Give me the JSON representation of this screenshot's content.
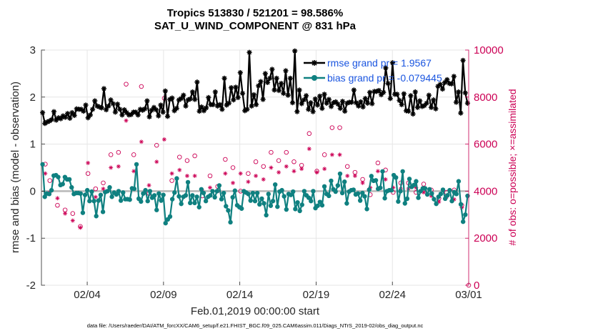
{
  "chart_data": {
    "type": "line",
    "title": "Tropics 513830 / 521201 = 98.586%",
    "subtitle": "SAT_U_WIND_COMPONENT @ 831 hPa",
    "xlabel": "Feb.01,2019 00:00:00 start",
    "ylabel": "rmse and bias (model - observation)",
    "ylabel_right": "# of obs: o=possible; ×=assimilated",
    "footnote": "data file: /Users/raeder/DAI/ATM_forcXX/CAM6_setup/f.e21.FHIST_BGC.f09_025.CAM6assim.011/Diags_NTrS_2019-02/obs_diag_output.nc",
    "xlim": [
      1,
      29
    ],
    "ylim": [
      -2,
      3
    ],
    "ylim_right": [
      0,
      10000
    ],
    "xticks": [
      {
        "value": 4,
        "label": "02/04"
      },
      {
        "value": 9,
        "label": "02/09"
      },
      {
        "value": 14,
        "label": "02/14"
      },
      {
        "value": 19,
        "label": "02/19"
      },
      {
        "value": 24,
        "label": "02/24"
      },
      {
        "value": 29,
        "label": "03/01"
      }
    ],
    "yticks": [
      "-2",
      "-1",
      "0",
      "1",
      "2",
      "3"
    ],
    "yticks_right": [
      "0",
      "2000",
      "4000",
      "6000",
      "8000",
      "10000"
    ],
    "series": [
      {
        "name": "rmse grand pr = 1.9567",
        "color": "#000000",
        "marker": "asterisk",
        "values": [
          1.67,
          1.44,
          1.47,
          1.49,
          1.52,
          1.69,
          1.51,
          1.56,
          1.54,
          1.6,
          1.57,
          1.65,
          1.55,
          1.67,
          1.61,
          1.75,
          1.74,
          1.74,
          1.7,
          1.83,
          1.56,
          1.62,
          1.74,
          1.92,
          1.81,
          1.79,
          1.77,
          2.18,
          1.73,
          1.81,
          1.94,
          1.86,
          1.68,
          1.85,
          1.74,
          1.62,
          1.73,
          1.67,
          1.62,
          1.63,
          1.68,
          1.68,
          1.62,
          1.74,
          1.72,
          1.75,
          1.92,
          1.58,
          1.72,
          1.78,
          1.73,
          1.6,
          1.83,
          1.68,
          2.13,
          1.59,
          1.95,
          1.98,
          1.71,
          1.76,
          1.94,
          1.97,
          2.04,
          1.81,
          1.94,
          1.96,
          2.11,
          1.95,
          2.32,
          1.7,
          1.79,
          1.71,
          1.77,
          1.99,
          1.84,
          1.84,
          2.11,
          1.81,
          1.84,
          1.74,
          2.4,
          1.83,
          1.87,
          2.2,
          1.94,
          2.21,
          1.99,
          2.52,
          2.08,
          1.71,
          1.74,
          2.95,
          1.81,
          2.05,
          1.84,
          2.24,
          2.33,
          1.95,
          2.5,
          2.31,
          2.4,
          2.59,
          2.15,
          2.4,
          2.14,
          2.29,
          2.08,
          2.56,
          2.04,
          2.4,
          1.88,
          2.98,
          1.69,
          2.15,
          1.86,
          1.94,
          2.03,
          1.74,
          1.88,
          1.69,
          1.96,
          1.83,
          2.02,
          1.76,
          2.06,
          1.87,
          1.95,
          1.8,
          1.88,
          1.9,
          1.85,
          1.76,
          1.91,
          1.7,
          1.87,
          1.89,
          1.89,
          2.15,
          1.88,
          1.81,
          1.9,
          1.79,
          1.97,
          1.87,
          2.1,
          1.86,
          2.12,
          2.12,
          2.14,
          2.05,
          2.1,
          2.62,
          2.29,
          1.97,
          2.73,
          2.06,
          2.06,
          1.93,
          1.84,
          2.07,
          1.71,
          1.7,
          2.03,
          1.64,
          2.11,
          1.78,
          1.92,
          1.8,
          1.82,
          1.87,
          2.04,
          1.78,
          1.94,
          1.75,
          2.23,
          2.27,
          2.17,
          2.31,
          2.37,
          2.29,
          2.28,
          2.44,
          1.89,
          2.11,
          1.66,
          2.78,
          2.09,
          1.87
        ]
      },
      {
        "name": "bias grand pr = -0.079445",
        "color": "#0f8080",
        "marker": "circle",
        "values": [
          0.57,
          -0.12,
          -0.05,
          -0.06,
          0.02,
          0.33,
          0.34,
          0.3,
          0.13,
          0.15,
          0.3,
          0.25,
          0.25,
          0.08,
          -0.06,
          -0.04,
          -0.04,
          -0.05,
          -0.46,
          -0.08,
          0.02,
          -0.21,
          -0.01,
          -0.21,
          -0.53,
          -0.2,
          -0.08,
          -0.44,
          -0.02,
          0.0,
          0.08,
          -0.12,
          -0.03,
          -0.07,
          0.0,
          -0.2,
          -0.03,
          -0.17,
          -0.17,
          -0.18,
          0.06,
          0.05,
          0.57,
          -0.16,
          -0.22,
          -0.05,
          0.02,
          -0.21,
          0.0,
          -0.14,
          -0.09,
          -0.4,
          -0.05,
          -0.2,
          -0.08,
          -0.68,
          -0.6,
          -0.54,
          -0.17,
          -0.03,
          0.27,
          -0.11,
          -0.27,
          -0.12,
          -0.09,
          0.19,
          -0.25,
          -0.09,
          -0.25,
          -0.12,
          -0.34,
          0.04,
          -0.04,
          -0.21,
          -0.12,
          -0.09,
          0.0,
          -0.13,
          0.0,
          0.12,
          -0.17,
          -0.04,
          -0.32,
          -0.41,
          -0.66,
          -0.13,
          0.01,
          -0.3,
          -0.34,
          -0.37,
          0.0,
          -0.03,
          -0.06,
          -0.2,
          -0.04,
          -0.21,
          -0.04,
          -0.28,
          -0.16,
          -0.26,
          -0.51,
          -0.06,
          -0.31,
          -0.21,
          0.14,
          -0.33,
          -0.01,
          0.02,
          -0.11,
          -0.39,
          -0.06,
          -0.08,
          -0.01,
          -0.38,
          -0.24,
          -0.42,
          -0.29,
          0.0,
          -0.09,
          -0.14,
          -0.21,
          0.0,
          -0.36,
          -0.31,
          -0.23,
          -0.3,
          0.1,
          -0.06,
          -0.1,
          0.22,
          0.04,
          -0.01,
          0.12,
          0.37,
          -0.04,
          0.2,
          -0.26,
          -0.01,
          0.02,
          0.03,
          -0.07,
          -0.05,
          -0.2,
          -0.04,
          -0.11,
          -0.38,
          0.03,
          0.32,
          0.22,
          0.23,
          0.05,
          0.07,
          0.42,
          -0.15,
          0.0,
          0.02,
          0.02,
          0.34,
          0.29,
          -0.22,
          0.0,
          0.42,
          -0.26,
          -0.16,
          0.26,
          0.09,
          0.13,
          0.21,
          -0.14,
          0.0,
          0.06,
          0.06,
          -0.07,
          0.04,
          -0.05,
          -0.17,
          -0.27,
          -0.12,
          -0.06,
          0.03,
          -0.16,
          -0.09,
          0.02,
          -0.21,
          -0.02,
          -0.06,
          0.21,
          -0.28,
          -0.65,
          -0.5,
          -0.1
        ]
      },
      {
        "name": "obs possible",
        "color": "#cc0055",
        "marker": "o",
        "axis": "right",
        "points": [
          [
            1.25,
            5150
          ],
          [
            1.55,
            4450
          ],
          [
            2.05,
            3400
          ],
          [
            2.55,
            3200
          ],
          [
            3.05,
            3050
          ],
          [
            3.55,
            2500
          ],
          [
            4.05,
            4750
          ],
          [
            4.55,
            4100
          ],
          [
            5.05,
            4350
          ],
          [
            5.55,
            5550
          ],
          [
            6.05,
            5650
          ],
          [
            6.55,
            8550
          ],
          [
            7.05,
            5550
          ],
          [
            7.55,
            8450
          ],
          [
            8.05,
            3900
          ],
          [
            8.55,
            5950
          ],
          [
            9.05,
            7950
          ],
          [
            9.55,
            4450
          ],
          [
            10.05,
            5450
          ],
          [
            10.55,
            5300
          ],
          [
            11.05,
            5500
          ],
          [
            11.55,
            3800
          ],
          [
            12.05,
            4650
          ],
          [
            12.55,
            4200
          ],
          [
            13.05,
            5350
          ],
          [
            13.55,
            5000
          ],
          [
            14.05,
            4000
          ],
          [
            14.55,
            4750
          ],
          [
            15.05,
            5250
          ],
          [
            15.55,
            5050
          ],
          [
            16.05,
            5650
          ],
          [
            16.55,
            5300
          ],
          [
            17.05,
            5650
          ],
          [
            17.55,
            5250
          ],
          [
            18.05,
            5100
          ],
          [
            18.55,
            6450
          ],
          [
            19.05,
            4850
          ],
          [
            19.55,
            5550
          ],
          [
            20.05,
            6700
          ],
          [
            20.55,
            6700
          ],
          [
            21.05,
            5050
          ],
          [
            21.55,
            4800
          ],
          [
            22.05,
            4500
          ],
          [
            22.55,
            3850
          ],
          [
            23.05,
            5200
          ],
          [
            23.55,
            4900
          ],
          [
            24.05,
            3950
          ],
          [
            24.55,
            4350
          ],
          [
            25.05,
            4350
          ],
          [
            25.55,
            3950
          ],
          [
            26.05,
            4300
          ],
          [
            26.55,
            4050
          ],
          [
            27.05,
            3700
          ],
          [
            27.55,
            3950
          ],
          [
            28.05,
            4050
          ],
          [
            28.55,
            3400
          ],
          [
            29.0,
            0
          ]
        ]
      },
      {
        "name": "obs assimilated",
        "color": "#cc0055",
        "marker": "x",
        "axis": "right",
        "points": [
          [
            1.25,
            4750
          ],
          [
            1.55,
            3950
          ],
          [
            2.05,
            3700
          ],
          [
            2.55,
            3050
          ],
          [
            3.05,
            2750
          ],
          [
            3.55,
            2450
          ],
          [
            4.05,
            5200
          ],
          [
            4.55,
            3750
          ],
          [
            5.05,
            4100
          ],
          [
            5.55,
            5000
          ],
          [
            6.05,
            5050
          ],
          [
            6.55,
            7000
          ],
          [
            7.05,
            4850
          ],
          [
            7.55,
            6100
          ],
          [
            8.05,
            4250
          ],
          [
            8.55,
            5250
          ],
          [
            9.05,
            6200
          ],
          [
            9.55,
            4750
          ],
          [
            10.05,
            4900
          ],
          [
            10.55,
            4650
          ],
          [
            11.05,
            4650
          ],
          [
            11.55,
            4000
          ],
          [
            12.05,
            4150
          ],
          [
            12.55,
            4000
          ],
          [
            13.05,
            4750
          ],
          [
            13.55,
            4350
          ],
          [
            14.05,
            4750
          ],
          [
            14.55,
            4400
          ],
          [
            15.05,
            4650
          ],
          [
            15.55,
            4500
          ],
          [
            16.05,
            5000
          ],
          [
            16.55,
            4800
          ],
          [
            17.05,
            5050
          ],
          [
            17.55,
            4850
          ],
          [
            18.05,
            4950
          ],
          [
            18.55,
            5800
          ],
          [
            19.05,
            4800
          ],
          [
            19.55,
            4950
          ],
          [
            20.05,
            5550
          ],
          [
            20.55,
            5550
          ],
          [
            21.05,
            4650
          ],
          [
            21.55,
            4650
          ],
          [
            22.05,
            4350
          ],
          [
            22.55,
            4150
          ],
          [
            23.05,
            4850
          ],
          [
            23.55,
            4500
          ],
          [
            24.05,
            4150
          ],
          [
            24.55,
            4100
          ],
          [
            25.05,
            4100
          ],
          [
            25.55,
            4150
          ],
          [
            26.05,
            3950
          ],
          [
            26.55,
            3800
          ],
          [
            27.05,
            3550
          ],
          [
            27.55,
            3750
          ],
          [
            28.05,
            3650
          ],
          [
            28.55,
            3300
          ]
        ]
      }
    ]
  },
  "legend": {
    "rmse_label": "rmse grand pr = 1.9567",
    "bias_label": "bias grand pr = -0.079445"
  }
}
